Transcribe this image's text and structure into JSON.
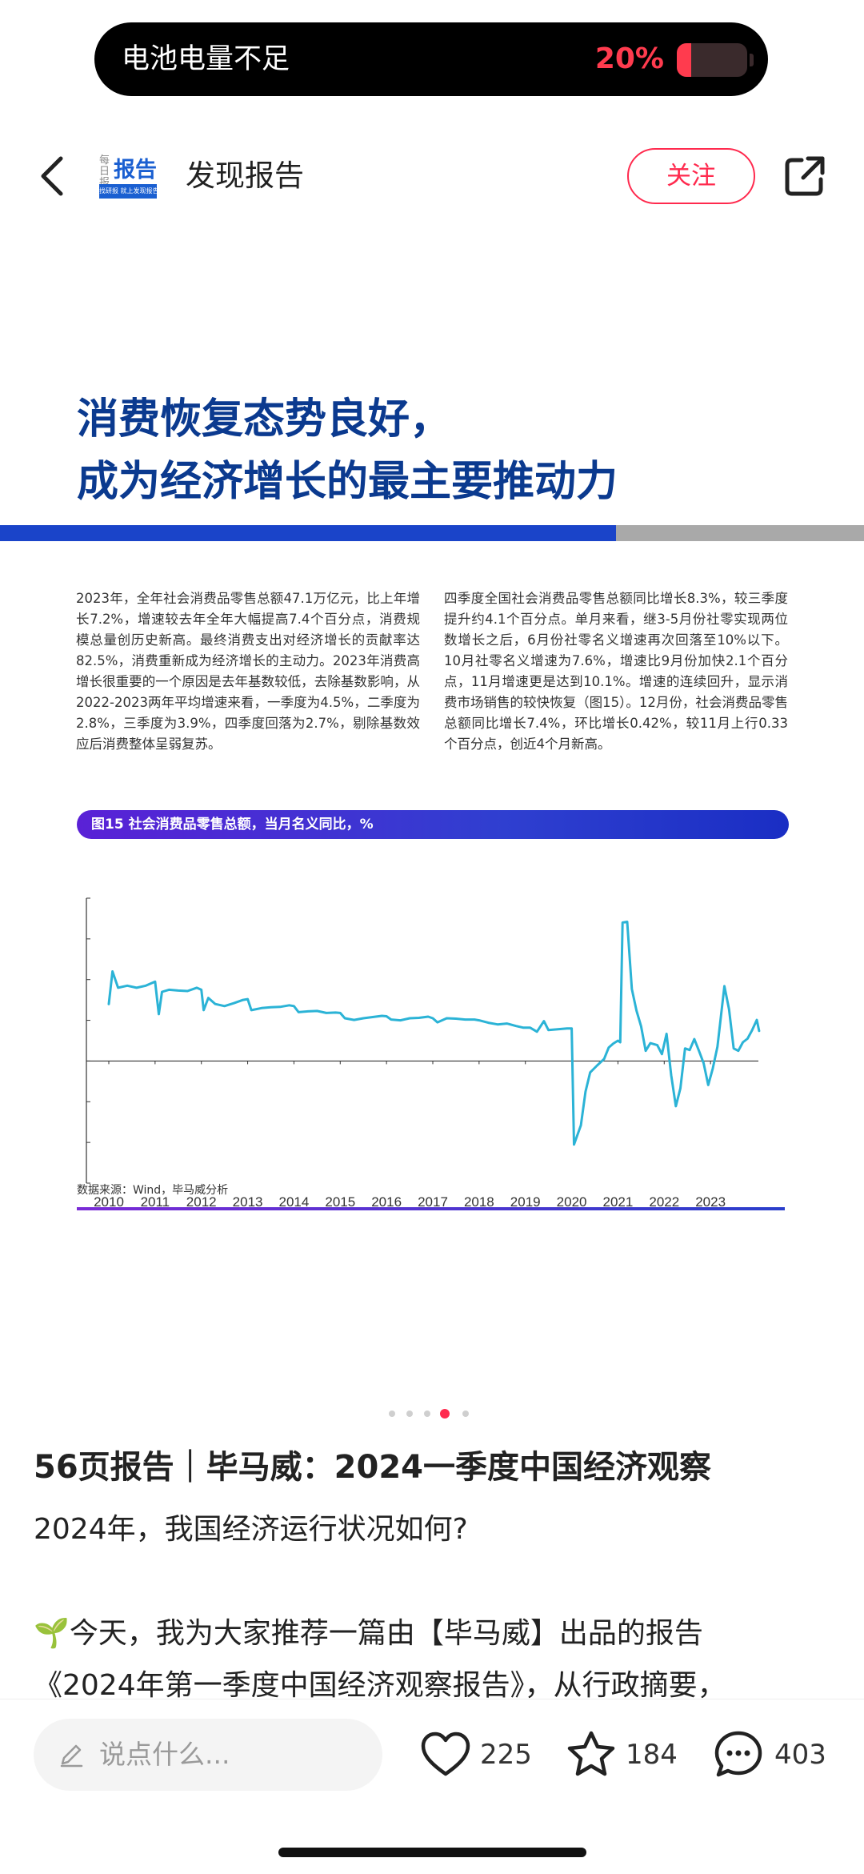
{
  "toast": {
    "text": "电池电量不足",
    "percent": "20%",
    "level": 0.2,
    "accent": "#ff3b4e"
  },
  "header": {
    "logo_small": "每日报告",
    "logo_main": "报告",
    "logo_tagline": "找研报 就上发现报告",
    "author": "发现报告",
    "follow_label": "关注"
  },
  "slide": {
    "title_line1": "消费恢复态势良好，",
    "title_line2": "成为经济增长的最主要推动力",
    "para_left": "2023年，全年社会消费品零售总额47.1万亿元，比上年增长7.2%，增速较去年全年大幅提高7.4个百分点，消费规模总量创历史新高。最终消费支出对经济增长的贡献率达82.5%，消费重新成为经济增长的主动力。2023年消费高增长很重要的一个原因是去年基数较低，去除基数影响，从2022-2023两年平均增速来看，一季度为4.5%，二季度为2.8%，三季度为3.9%，四季度回落为2.7%，剔除基数效应后消费整体呈弱复苏。",
    "para_right": "四季度全国社会消费品零售总额同比增长8.3%，较三季度提升约4.1个百分点。单月来看，继3-5月份社零实现两位数增长之后，6月份社零名义增速再次回落至10%以下。10月社零名义增速为7.6%，增速比9月份加快2.1个百分点，11月增速更是达到10.1%。增速的连续回升，显示消费市场销售的较快恢复（图15）。12月份，社会消费品零售总额同比增长7.4%，环比增长0.42%，较11月上行0.33个百分点，创近4个月新高。",
    "figure_title": "图15 社会消费品零售总额，当月名义同比，%",
    "source": "数据来源：Wind，毕马威分析"
  },
  "chart_data": {
    "type": "line",
    "title": "图15 社会消费品零售总额，当月名义同比，%",
    "xlabel": "",
    "ylabel": "",
    "x_ticks": [
      "2010",
      "2011",
      "2012",
      "2013",
      "2014",
      "2015",
      "2016",
      "2017",
      "2018",
      "2019",
      "2020",
      "2021",
      "2022",
      "2023"
    ],
    "y_ticks": [
      40,
      30,
      20,
      10,
      0,
      -10,
      -20,
      -30
    ],
    "xlim": [
      2010,
      2024
    ],
    "ylim": [
      -30,
      40
    ],
    "grid": false,
    "line_color": "#2bb3d6",
    "series": [
      {
        "points": [
          [
            2010.0,
            14
          ],
          [
            2010.08,
            22
          ],
          [
            2010.2,
            18
          ],
          [
            2010.4,
            18.5
          ],
          [
            2010.6,
            18
          ],
          [
            2010.8,
            18.5
          ],
          [
            2011.0,
            19.5
          ],
          [
            2011.08,
            11.5
          ],
          [
            2011.15,
            17
          ],
          [
            2011.3,
            17.5
          ],
          [
            2011.5,
            17.3
          ],
          [
            2011.7,
            17.2
          ],
          [
            2011.9,
            18
          ],
          [
            2012.0,
            17.5
          ],
          [
            2012.05,
            12.5
          ],
          [
            2012.15,
            15.5
          ],
          [
            2012.3,
            14
          ],
          [
            2012.5,
            13.5
          ],
          [
            2012.7,
            14.2
          ],
          [
            2012.9,
            15
          ],
          [
            2013.0,
            15.2
          ],
          [
            2013.08,
            12.5
          ],
          [
            2013.3,
            13
          ],
          [
            2013.5,
            13.2
          ],
          [
            2013.7,
            13.3
          ],
          [
            2013.9,
            13.7
          ],
          [
            2014.0,
            13.5
          ],
          [
            2014.1,
            12
          ],
          [
            2014.3,
            12.2
          ],
          [
            2014.5,
            12.3
          ],
          [
            2014.7,
            11.8
          ],
          [
            2014.9,
            11.9
          ],
          [
            2015.0,
            11.8
          ],
          [
            2015.1,
            10.5
          ],
          [
            2015.3,
            10.1
          ],
          [
            2015.5,
            10.5
          ],
          [
            2015.7,
            10.8
          ],
          [
            2015.9,
            11.1
          ],
          [
            2016.0,
            11
          ],
          [
            2016.1,
            10.2
          ],
          [
            2016.3,
            10
          ],
          [
            2016.5,
            10.5
          ],
          [
            2016.7,
            10.6
          ],
          [
            2016.9,
            10.9
          ],
          [
            2017.0,
            10.5
          ],
          [
            2017.1,
            9.5
          ],
          [
            2017.3,
            10.5
          ],
          [
            2017.5,
            10.4
          ],
          [
            2017.7,
            10.2
          ],
          [
            2017.9,
            10.2
          ],
          [
            2018.0,
            10
          ],
          [
            2018.2,
            9.4
          ],
          [
            2018.4,
            9
          ],
          [
            2018.6,
            9.2
          ],
          [
            2018.8,
            8.6
          ],
          [
            2018.95,
            8.2
          ],
          [
            2019.1,
            8.2
          ],
          [
            2019.25,
            7.2
          ],
          [
            2019.4,
            9.8
          ],
          [
            2019.5,
            7.6
          ],
          [
            2019.7,
            7.8
          ],
          [
            2019.9,
            8
          ],
          [
            2020.0,
            8
          ],
          [
            2020.05,
            -20.5
          ],
          [
            2020.2,
            -15.8
          ],
          [
            2020.3,
            -7.5
          ],
          [
            2020.4,
            -2.8
          ],
          [
            2020.55,
            -1.1
          ],
          [
            2020.7,
            0.5
          ],
          [
            2020.8,
            3.3
          ],
          [
            2020.9,
            4.3
          ],
          [
            2021.0,
            5
          ],
          [
            2021.05,
            4.6
          ],
          [
            2021.1,
            34
          ],
          [
            2021.2,
            34.2
          ],
          [
            2021.3,
            17.7
          ],
          [
            2021.4,
            12.4
          ],
          [
            2021.5,
            8.5
          ],
          [
            2021.6,
            2.5
          ],
          [
            2021.7,
            4.4
          ],
          [
            2021.85,
            3.9
          ],
          [
            2021.95,
            1.7
          ],
          [
            2022.05,
            6.7
          ],
          [
            2022.15,
            -3.5
          ],
          [
            2022.25,
            -11.1
          ],
          [
            2022.35,
            -6.7
          ],
          [
            2022.45,
            3.1
          ],
          [
            2022.55,
            2.7
          ],
          [
            2022.65,
            5.4
          ],
          [
            2022.75,
            2.5
          ],
          [
            2022.85,
            -0.5
          ],
          [
            2022.95,
            -5.9
          ],
          [
            2023.05,
            -1.8
          ],
          [
            2023.15,
            3.5
          ],
          [
            2023.3,
            18.4
          ],
          [
            2023.4,
            12.7
          ],
          [
            2023.5,
            3.1
          ],
          [
            2023.6,
            2.5
          ],
          [
            2023.7,
            4.6
          ],
          [
            2023.8,
            5.5
          ],
          [
            2023.9,
            7.6
          ],
          [
            2024.0,
            10.1
          ],
          [
            2024.05,
            7.4
          ]
        ]
      }
    ]
  },
  "pager": {
    "count": 5,
    "active": 3
  },
  "post": {
    "title": "56页报告｜毕马威：2024一季度中国经济观察",
    "line1": "2024年，我国经济运行状况如何?",
    "line2": "🌱今天，我为大家推荐一篇由【毕马威】出品的报告",
    "line3": "《2024年第一季度中国经济观察报告》，从行政摘要，"
  },
  "bottom": {
    "comment_placeholder": "说点什么...",
    "likes": "225",
    "stars": "184",
    "comments": "403"
  }
}
